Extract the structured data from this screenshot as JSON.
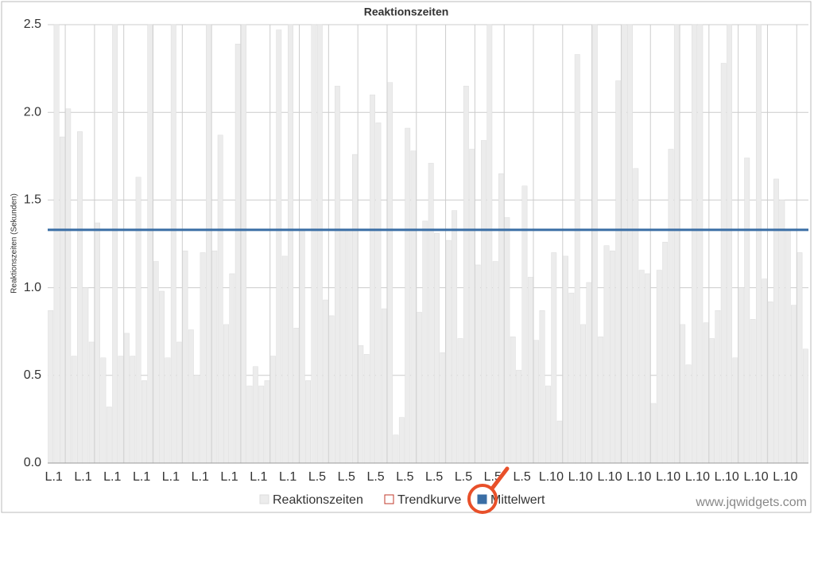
{
  "chart_data": {
    "type": "bar",
    "title": "Reaktionszeiten",
    "y_label": "Reaktionszeiten (Sekunden)",
    "categories": [
      "L.1",
      null,
      null,
      null,
      null,
      "L.1",
      null,
      null,
      null,
      null,
      "L.1",
      null,
      null,
      null,
      null,
      "L.1",
      null,
      null,
      null,
      null,
      "L.1",
      null,
      null,
      null,
      null,
      "L.1",
      null,
      null,
      null,
      null,
      "L.1",
      null,
      null,
      null,
      null,
      "L.1",
      null,
      null,
      null,
      null,
      "L.1",
      null,
      null,
      null,
      null,
      "L.5",
      null,
      null,
      null,
      null,
      "L.5",
      null,
      null,
      null,
      null,
      "L.5",
      null,
      null,
      null,
      null,
      "L.5",
      null,
      null,
      null,
      null,
      "L.5",
      null,
      null,
      null,
      null,
      "L.5",
      null,
      null,
      null,
      null,
      "L.5",
      null,
      null,
      null,
      null,
      "L.5",
      null,
      null,
      null,
      null,
      "L.10",
      null,
      null,
      null,
      null,
      "L.10",
      null,
      null,
      null,
      null,
      "L.10",
      null,
      null,
      null,
      null,
      "L.10",
      null,
      null,
      null,
      null,
      "L.10",
      null,
      null,
      null,
      null,
      "L.10",
      null,
      null,
      null,
      null,
      "L.10",
      null,
      null,
      null,
      null,
      "L.10",
      null,
      null,
      null,
      null,
      "L.10",
      null,
      null,
      null,
      null
    ],
    "series": [
      {
        "name": "Reaktionszeiten",
        "color": "#ececec",
        "values": [
          0.87,
          2.5,
          1.86,
          2.02,
          0.61,
          1.89,
          1.0,
          0.69,
          1.37,
          0.6,
          0.32,
          2.5,
          0.61,
          0.74,
          0.61,
          1.63,
          0.47,
          2.5,
          1.15,
          0.98,
          0.6,
          2.5,
          0.69,
          1.21,
          0.76,
          0.5,
          1.2,
          2.5,
          1.21,
          1.87,
          0.79,
          1.08,
          2.39,
          2.5,
          0.44,
          0.55,
          0.44,
          0.47,
          0.61,
          2.47,
          1.18,
          2.5,
          0.77,
          1.33,
          0.47,
          2.5,
          2.5,
          0.93,
          0.84,
          2.15,
          1.33,
          1.33,
          1.76,
          0.67,
          0.62,
          2.1,
          1.94,
          0.88,
          2.17,
          0.16,
          0.26,
          1.91,
          1.78,
          0.86,
          1.38,
          1.71,
          1.31,
          0.63,
          1.27,
          1.44,
          0.71,
          2.15,
          1.79,
          1.13,
          1.84,
          2.5,
          1.15,
          1.65,
          1.4,
          0.72,
          0.53,
          1.58,
          1.06,
          0.7,
          0.87,
          0.44,
          1.2,
          0.24,
          1.18,
          0.97,
          2.33,
          0.79,
          1.03,
          2.5,
          0.72,
          1.24,
          1.21,
          2.18,
          2.5,
          2.5,
          1.68,
          1.1,
          1.08,
          0.34,
          1.1,
          1.26,
          1.79,
          2.5,
          0.79,
          0.56,
          2.5,
          2.5,
          0.8,
          0.71,
          0.87,
          2.28,
          2.5,
          0.6,
          1.0,
          1.74,
          0.82,
          2.5,
          1.05,
          0.92,
          1.62,
          1.5,
          1.33,
          0.9,
          1.2,
          0.65
        ]
      },
      {
        "name": "Trendkurve",
        "color": "#c0392b"
      },
      {
        "name": "Mittelwert",
        "color": "#3a6ea5",
        "value": 1.33
      }
    ],
    "ylim": [
      0,
      2.5
    ],
    "yticks": [
      {
        "value": 0,
        "label": "0.0"
      },
      {
        "value": 0.5,
        "label": "0.5"
      },
      {
        "value": 1,
        "label": "1.0"
      },
      {
        "value": 1.5,
        "label": "1.5"
      },
      {
        "value": 2,
        "label": "2.0"
      },
      {
        "value": 2.5,
        "label": "2.5"
      }
    ],
    "grid": true,
    "watermark": "www.jqwidgets.com"
  }
}
